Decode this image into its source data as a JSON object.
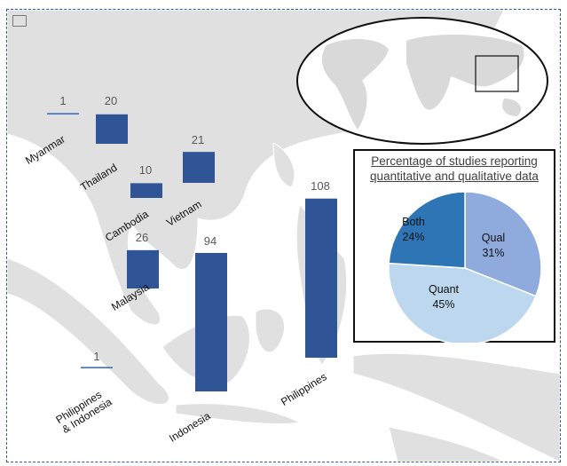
{
  "chart_data": [
    {
      "type": "bar",
      "title": "",
      "categories": [
        "Myanmar",
        "Thailand",
        "Cambodia",
        "Vietnam",
        "Malaysia",
        "Indonesia",
        "Philippines",
        "Philippines & Indonesia"
      ],
      "values": [
        1,
        20,
        10,
        21,
        26,
        94,
        108,
        1
      ],
      "bar_color": "#2f5597",
      "background": "map of Southeast Asia"
    },
    {
      "type": "pie",
      "title": "Percentage of studies reporting quantitative and qualitative data",
      "title_lines": [
        "Percentage of studies reporting",
        "quantitative and qualitative data"
      ],
      "slices": [
        {
          "label": "Qual",
          "value": 31,
          "display": "31%",
          "color": "#8faadc"
        },
        {
          "label": "Quant",
          "value": 45,
          "display": "45%",
          "color": "#bdd7ee"
        },
        {
          "label": "Both",
          "value": 24,
          "display": "24%",
          "color": "#2e75b6"
        }
      ]
    }
  ],
  "labels": {
    "Myanmar": "Myanmar",
    "Thailand": "Thailand",
    "Cambodia": "Cambodia",
    "Vietnam": "Vietnam",
    "Malaysia": "Malaysia",
    "Indonesia": "Indonesia",
    "Philippines": "Philippines",
    "PhilIndo1": "Philippines",
    "PhilIndo2": "& Indonesia"
  },
  "icons": {
    "corner": "image-icon"
  }
}
